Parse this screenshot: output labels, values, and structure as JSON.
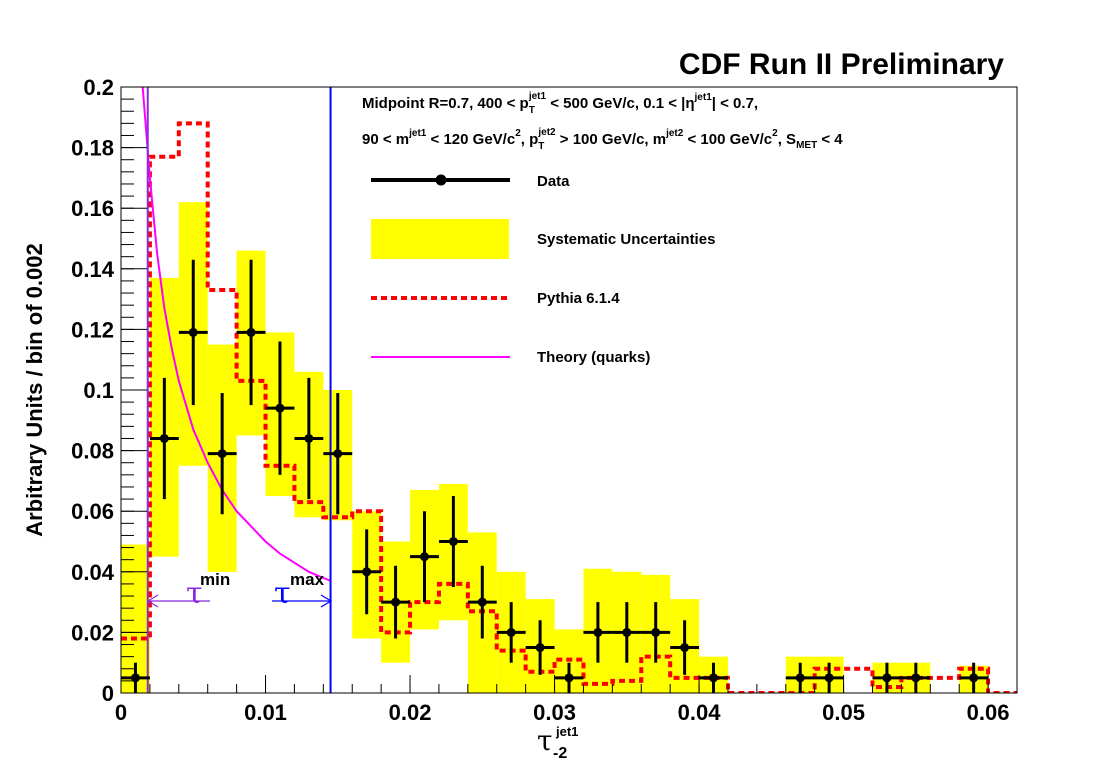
{
  "header": {
    "title": "CDF Run II Preliminary"
  },
  "cuts": {
    "line1": "Midpoint R=0.7, 400 < p_T^jet1 < 500 GeV/c, 0.1 < |η^jet1| < 0.7,",
    "line2": "90 < m^jet1 < 120 GeV/c², p_T^jet2 > 100 GeV/c, m^jet2 < 100 GeV/c², S_MET < 4"
  },
  "legend": {
    "data": "Data",
    "syst": "Systematic Uncertainties",
    "pythia": "Pythia 6.1.4",
    "theory": "Theory (quarks)"
  },
  "annotations": {
    "tau_min": "τ^min",
    "tau_max": "τ^max"
  },
  "colors": {
    "band": "#ffff00",
    "pythia": "#ff0000",
    "theory": "#ff00ff",
    "tau_min": "#8a2be2",
    "tau_max": "#0000ff",
    "data": "#000000"
  },
  "chart_data": {
    "type": "line",
    "title": "CDF Run II Preliminary",
    "xlabel": "τ_-2^jet1",
    "ylabel": "Arbitrary Units / bin of 0.002",
    "xlim": [
      0,
      0.062
    ],
    "ylim": [
      0,
      0.2
    ],
    "x_ticks": [
      0,
      0.01,
      0.02,
      0.03,
      0.04,
      0.05,
      0.06
    ],
    "x_tick_labels": [
      "0",
      "0.01",
      "0.02",
      "0.03",
      "0.04",
      "0.05",
      "0.06"
    ],
    "y_ticks": [
      0,
      0.02,
      0.04,
      0.06,
      0.08,
      0.1,
      0.12,
      0.14,
      0.16,
      0.18,
      0.2
    ],
    "y_tick_labels": [
      "0",
      "0.02",
      "0.04",
      "0.06",
      "0.08",
      "0.1",
      "0.12",
      "0.14",
      "0.16",
      "0.18",
      "0.2"
    ],
    "bin_width": 0.002,
    "data": {
      "x": [
        0.001,
        0.003,
        0.005,
        0.007,
        0.009,
        0.011,
        0.013,
        0.015,
        0.017,
        0.019,
        0.021,
        0.023,
        0.025,
        0.027,
        0.029,
        0.031,
        0.033,
        0.035,
        0.037,
        0.039,
        0.041,
        0.047,
        0.049,
        0.053,
        0.055,
        0.059
      ],
      "y": [
        0.005,
        0.084,
        0.119,
        0.079,
        0.119,
        0.094,
        0.084,
        0.079,
        0.04,
        0.03,
        0.045,
        0.05,
        0.03,
        0.02,
        0.015,
        0.005,
        0.02,
        0.02,
        0.02,
        0.015,
        0.005,
        0.005,
        0.005,
        0.005,
        0.005,
        0.005
      ],
      "yerr": [
        0.005,
        0.02,
        0.024,
        0.02,
        0.024,
        0.022,
        0.02,
        0.02,
        0.014,
        0.012,
        0.015,
        0.015,
        0.012,
        0.01,
        0.009,
        0.005,
        0.01,
        0.01,
        0.01,
        0.009,
        0.005,
        0.005,
        0.005,
        0.005,
        0.005,
        0.005
      ]
    },
    "systematics": {
      "x": [
        0.001,
        0.003,
        0.005,
        0.007,
        0.009,
        0.011,
        0.013,
        0.015,
        0.017,
        0.019,
        0.021,
        0.023,
        0.025,
        0.027,
        0.029,
        0.031,
        0.033,
        0.035,
        0.037,
        0.039,
        0.041,
        0.047,
        0.049,
        0.053,
        0.055,
        0.059
      ],
      "low": [
        0.0,
        0.045,
        0.075,
        0.04,
        0.085,
        0.065,
        0.058,
        0.057,
        0.018,
        0.01,
        0.021,
        0.024,
        0.0,
        0.0,
        0.0,
        0.0,
        0.0,
        0.0,
        0.0,
        0.0,
        0.0,
        0.0,
        0.0,
        0.0,
        0.0,
        0.0
      ],
      "high": [
        0.049,
        0.137,
        0.162,
        0.115,
        0.146,
        0.119,
        0.106,
        0.1,
        0.06,
        0.05,
        0.067,
        0.069,
        0.053,
        0.04,
        0.031,
        0.021,
        0.041,
        0.04,
        0.039,
        0.031,
        0.012,
        0.012,
        0.012,
        0.01,
        0.01,
        0.009
      ]
    },
    "pythia": {
      "edges": [
        0,
        0.002,
        0.004,
        0.006,
        0.008,
        0.01,
        0.012,
        0.014,
        0.016,
        0.018,
        0.02,
        0.022,
        0.024,
        0.026,
        0.028,
        0.03,
        0.032,
        0.034,
        0.036,
        0.038,
        0.04,
        0.042,
        0.044,
        0.046,
        0.048,
        0.05,
        0.052,
        0.054,
        0.056,
        0.058,
        0.06,
        0.062
      ],
      "values": [
        0.018,
        0.177,
        0.188,
        0.133,
        0.103,
        0.075,
        0.063,
        0.058,
        0.06,
        0.02,
        0.03,
        0.036,
        0.027,
        0.014,
        0.007,
        0.011,
        0.003,
        0.004,
        0.012,
        0.005,
        0.005,
        0.0,
        0.0,
        0.0,
        0.008,
        0.008,
        0.002,
        0.005,
        0.005,
        0.008,
        0.0
      ]
    },
    "theory": {
      "x": [
        0.0015,
        0.002,
        0.0025,
        0.003,
        0.0035,
        0.004,
        0.005,
        0.006,
        0.007,
        0.008,
        0.009,
        0.01,
        0.011,
        0.012,
        0.013,
        0.014,
        0.0145
      ],
      "y": [
        0.2,
        0.17,
        0.145,
        0.127,
        0.114,
        0.103,
        0.087,
        0.076,
        0.067,
        0.06,
        0.055,
        0.05,
        0.046,
        0.043,
        0.04,
        0.038,
        0.037
      ]
    },
    "vlines": {
      "tau_min": 0.00185,
      "tau_max": 0.0145
    }
  }
}
